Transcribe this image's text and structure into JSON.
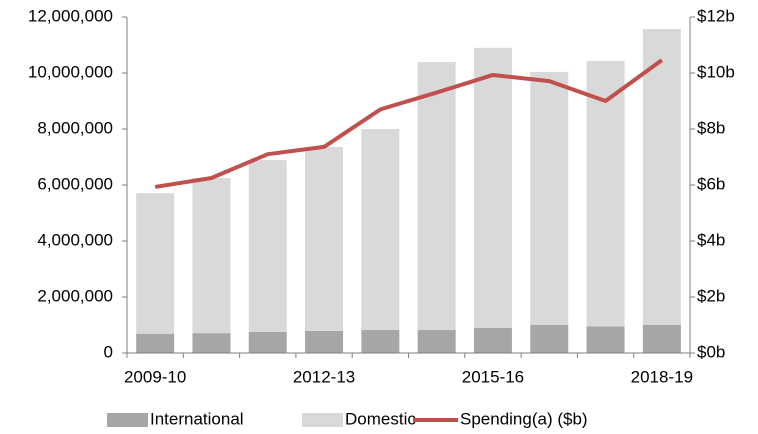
{
  "chart_data": {
    "type": "bar-line",
    "categories": [
      "2009-10",
      null,
      null,
      "2012-13",
      null,
      null,
      "2015-16",
      null,
      null,
      "2018-19"
    ],
    "series": [
      {
        "name": "International",
        "color": "#a6a6a6",
        "values": [
          690000,
          710000,
          750000,
          790000,
          820000,
          820000,
          900000,
          1000000,
          950000,
          1000000
        ]
      },
      {
        "name": "Domestic",
        "color": "#d9d9d9",
        "values": [
          5020000,
          5540000,
          6140000,
          6570000,
          7180000,
          9570000,
          10000000,
          9040000,
          9480000,
          10570000
        ]
      },
      {
        "name": "Spending(a) ($b)",
        "color": "#c0504d",
        "axis": "y2",
        "values": [
          5.93,
          6.25,
          7.1,
          7.36,
          8.7,
          9.3,
          9.93,
          9.71,
          9.0,
          10.46
        ]
      }
    ],
    "ylim": [
      0,
      12000000
    ],
    "yticks": [
      0,
      {
        "value": 2000000,
        "label": "2,000,000"
      },
      {
        "value": 4000000,
        "label": "4,000,000"
      },
      {
        "value": 6000000,
        "label": "6,000,000"
      },
      {
        "value": 8000000,
        "label": "8,000,000"
      },
      {
        "value": 10000000,
        "label": "10,000,000"
      },
      {
        "value": 12000000,
        "label": "12,000,000"
      }
    ],
    "y2lim": [
      0,
      12
    ],
    "y2ticks": [
      {
        "value": 0,
        "label": "$0b"
      },
      {
        "value": 2,
        "label": "$2b"
      },
      {
        "value": 4,
        "label": "$4b"
      },
      {
        "value": 6,
        "label": "$6b"
      },
      {
        "value": 8,
        "label": "$8b"
      },
      {
        "value": 10,
        "label": "$10b"
      },
      {
        "value": 12,
        "label": "$12b"
      }
    ],
    "legend": "bottom"
  }
}
